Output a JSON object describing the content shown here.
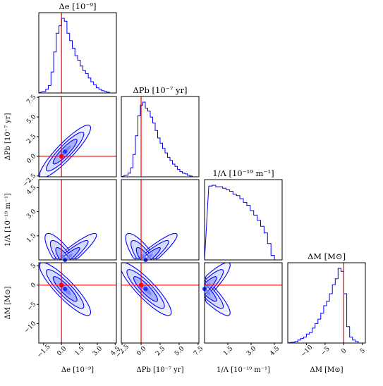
{
  "colors": {
    "samples": "#0000ff",
    "truth": "#ff0000",
    "frame": "#000000"
  },
  "chart_data": {
    "type": "corner",
    "parameters": [
      {
        "key": "de",
        "title": "Δe [10⁻⁹]",
        "axis_label": "Δe [10⁻⁹]",
        "range": [
          -1.9,
          4.6
        ],
        "ticks": [
          -1.5,
          0.0,
          1.5,
          3.0,
          4.5
        ],
        "tick_labels": [
          "−1.5",
          "0.0",
          "1.5",
          "3.0",
          "4.5"
        ],
        "truth": 0.0,
        "peak": 0.3
      },
      {
        "key": "dpb",
        "title": "ΔPb [10⁻⁷ yr]",
        "axis_label": "ΔPb [10⁻⁷ yr]",
        "range": [
          -2.6,
          7.6
        ],
        "ticks": [
          -2.5,
          0.0,
          2.5,
          5.0,
          7.5
        ],
        "tick_labels": [
          "−2.5",
          "0.0",
          "2.5",
          "5.0",
          "7.5"
        ],
        "truth": 0.0,
        "peak": 0.6
      },
      {
        "key": "invlambda",
        "title": "1/Λ [10⁻¹⁹ m⁻¹]",
        "axis_label": "1/Λ [10⁻¹⁹ m⁻¹]",
        "range": [
          0.0,
          5.0
        ],
        "ticks": [
          1.5,
          3.0,
          4.5
        ],
        "tick_labels": [
          "1.5",
          "3.0",
          "4.5"
        ],
        "truth": 0.0,
        "peak": 0.0
      },
      {
        "key": "dm",
        "title": "ΔM [M⊙]",
        "axis_label": "ΔM [M⊙]",
        "range": [
          -15.0,
          5.8
        ],
        "ticks": [
          -10,
          -5,
          0,
          5
        ],
        "tick_labels": [
          "−10",
          "−5",
          "0",
          "5"
        ],
        "truth": 0.0,
        "peak": -1.0
      }
    ],
    "histograms": {
      "de": [
        0.02,
        0.05,
        0.1,
        0.28,
        0.55,
        0.8,
        0.9,
        1.0,
        0.96,
        0.8,
        0.7,
        0.6,
        0.5,
        0.44,
        0.36,
        0.3,
        0.26,
        0.2,
        0.15,
        0.11,
        0.07,
        0.05,
        0.03,
        0.02,
        0.01,
        0.0
      ],
      "dpb": [
        0.02,
        0.05,
        0.12,
        0.3,
        0.55,
        0.82,
        0.96,
        1.0,
        0.92,
        0.88,
        0.8,
        0.72,
        0.62,
        0.52,
        0.45,
        0.38,
        0.32,
        0.26,
        0.22,
        0.17,
        0.14,
        0.1,
        0.07,
        0.05,
        0.04,
        0.02,
        0.01,
        0.0
      ],
      "invlambda": [
        0.99,
        1.0,
        0.98,
        0.98,
        0.96,
        0.94,
        0.92,
        0.88,
        0.86,
        0.82,
        0.77,
        0.73,
        0.66,
        0.6,
        0.53,
        0.45,
        0.36,
        0.22,
        0.06,
        0.0
      ],
      "dm": [
        0.01,
        0.02,
        0.04,
        0.06,
        0.08,
        0.12,
        0.14,
        0.2,
        0.26,
        0.32,
        0.4,
        0.5,
        0.56,
        0.66,
        0.78,
        0.86,
        1.0,
        0.96,
        0.66,
        0.22,
        0.08,
        0.04,
        0.02,
        0.0
      ]
    },
    "contour_levels": [
      "39%",
      "86%",
      "99%"
    ],
    "grid": false,
    "legend": "none"
  }
}
